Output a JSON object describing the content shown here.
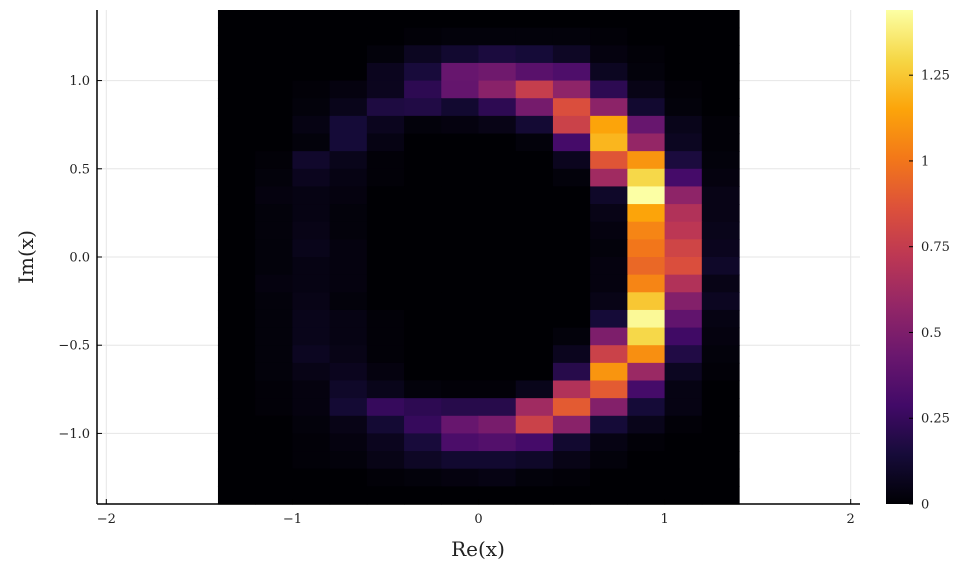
{
  "chart_data": {
    "type": "heatmap",
    "title": "",
    "xlabel": "Re(x)",
    "ylabel": "Im(x)",
    "xlim": [
      -2.05,
      2.05
    ],
    "ylim": [
      -1.4,
      1.4
    ],
    "grid": true,
    "legend": "none",
    "x_ticks": [
      -2,
      -1,
      0,
      1,
      2
    ],
    "x_tick_labels": [
      "−2",
      "−1",
      "0",
      "1",
      "2"
    ],
    "y_ticks": [
      -1,
      -0.5,
      0,
      0.5,
      1
    ],
    "y_tick_labels": [
      "−1.0",
      "−0.5",
      "0.0",
      "0.5",
      "1.0"
    ],
    "x_edges": [
      -1.4,
      -1.2,
      -1.0,
      -0.8,
      -0.6,
      -0.4,
      -0.2,
      0.0,
      0.2,
      0.4,
      0.6,
      0.8,
      1.0,
      1.2,
      1.4
    ],
    "y_edges": [
      1.4,
      1.3,
      1.2,
      1.1,
      1.0,
      0.9,
      0.8,
      0.7,
      0.6,
      0.5,
      0.4,
      0.3,
      0.2,
      0.1,
      0.0,
      -0.1,
      -0.2,
      -0.3,
      -0.4,
      -0.5,
      -0.6,
      -0.7,
      -0.8,
      -0.9,
      -1.0,
      -1.1,
      -1.2,
      -1.3,
      -1.4
    ],
    "values": [
      [
        0,
        0,
        0,
        0,
        0,
        0,
        0,
        0,
        0,
        0,
        0,
        0,
        0,
        0
      ],
      [
        0,
        0,
        0,
        0,
        0,
        0.01,
        0.02,
        0.02,
        0.02,
        0.02,
        0.01,
        0,
        0,
        0
      ],
      [
        0,
        0,
        0,
        0,
        0.02,
        0.08,
        0.12,
        0.16,
        0.14,
        0.09,
        0.03,
        0.01,
        0,
        0
      ],
      [
        0,
        0,
        0,
        0,
        0.07,
        0.15,
        0.42,
        0.45,
        0.37,
        0.33,
        0.08,
        0.02,
        0,
        0
      ],
      [
        0,
        0,
        0.01,
        0.03,
        0.07,
        0.22,
        0.41,
        0.54,
        0.76,
        0.56,
        0.22,
        0.05,
        0.01,
        0
      ],
      [
        0,
        0,
        0.02,
        0.06,
        0.17,
        0.18,
        0.12,
        0.22,
        0.47,
        0.85,
        0.55,
        0.12,
        0.02,
        0
      ],
      [
        0,
        0,
        0.04,
        0.14,
        0.07,
        0.02,
        0.03,
        0.05,
        0.13,
        0.78,
        1.15,
        0.42,
        0.06,
        0.01
      ],
      [
        0,
        0,
        0.02,
        0.14,
        0.04,
        0,
        0,
        0,
        0.02,
        0.3,
        1.2,
        0.58,
        0.08,
        0.01
      ],
      [
        0,
        0.01,
        0.11,
        0.06,
        0.01,
        0,
        0,
        0,
        0,
        0.07,
        0.88,
        1.1,
        0.16,
        0.02
      ],
      [
        0,
        0.02,
        0.07,
        0.04,
        0.01,
        0,
        0,
        0,
        0,
        0.02,
        0.62,
        1.3,
        0.3,
        0.03
      ],
      [
        0,
        0.03,
        0.04,
        0.03,
        0,
        0,
        0,
        0,
        0,
        0,
        0.1,
        1.44,
        0.56,
        0.05
      ],
      [
        0,
        0.02,
        0.04,
        0.02,
        0,
        0,
        0,
        0,
        0,
        0,
        0.05,
        1.15,
        0.68,
        0.05
      ],
      [
        0,
        0.02,
        0.05,
        0.02,
        0,
        0,
        0,
        0,
        0,
        0,
        0.03,
        1.05,
        0.72,
        0.06
      ],
      [
        0,
        0.02,
        0.06,
        0.03,
        0,
        0,
        0,
        0,
        0,
        0,
        0.02,
        1.0,
        0.8,
        0.07
      ],
      [
        0,
        0.02,
        0.04,
        0.03,
        0,
        0,
        0,
        0,
        0,
        0,
        0.03,
        0.95,
        0.85,
        0.1
      ],
      [
        0,
        0.03,
        0.04,
        0.03,
        0,
        0,
        0,
        0,
        0,
        0,
        0.03,
        1.05,
        0.68,
        0.05
      ],
      [
        0,
        0.02,
        0.05,
        0.02,
        0,
        0,
        0,
        0,
        0,
        0,
        0.05,
        1.25,
        0.52,
        0.08
      ],
      [
        0,
        0.02,
        0.06,
        0.04,
        0.01,
        0,
        0,
        0,
        0,
        0,
        0.14,
        1.42,
        0.4,
        0.04
      ],
      [
        0,
        0.02,
        0.06,
        0.04,
        0.01,
        0,
        0,
        0,
        0,
        0.02,
        0.5,
        1.3,
        0.28,
        0.03
      ],
      [
        0,
        0.02,
        0.08,
        0.05,
        0.01,
        0,
        0,
        0,
        0,
        0.07,
        0.78,
        1.08,
        0.18,
        0.02
      ],
      [
        0,
        0.02,
        0.05,
        0.07,
        0.03,
        0,
        0,
        0,
        0,
        0.2,
        1.1,
        0.6,
        0.08,
        0.01
      ],
      [
        0,
        0.01,
        0.03,
        0.1,
        0.06,
        0.02,
        0.01,
        0.01,
        0.06,
        0.68,
        0.9,
        0.3,
        0.04,
        0
      ],
      [
        0,
        0.01,
        0.03,
        0.13,
        0.25,
        0.22,
        0.2,
        0.2,
        0.62,
        0.9,
        0.52,
        0.14,
        0.04,
        0
      ],
      [
        0,
        0,
        0.02,
        0.05,
        0.13,
        0.25,
        0.42,
        0.48,
        0.78,
        0.54,
        0.14,
        0.06,
        0.01,
        0
      ],
      [
        0,
        0,
        0.01,
        0.03,
        0.07,
        0.15,
        0.32,
        0.35,
        0.3,
        0.12,
        0.04,
        0.01,
        0,
        0
      ],
      [
        0,
        0,
        0.01,
        0.02,
        0.05,
        0.09,
        0.12,
        0.12,
        0.1,
        0.05,
        0.02,
        0,
        0,
        0
      ],
      [
        0,
        0,
        0,
        0,
        0.01,
        0.02,
        0.03,
        0.04,
        0.02,
        0.01,
        0,
        0,
        0,
        0
      ],
      [
        0,
        0,
        0,
        0,
        0,
        0,
        0,
        0,
        0,
        0,
        0,
        0,
        0,
        0
      ]
    ],
    "colorscale": "inferno",
    "colorbar_range": [
      0,
      1.44
    ],
    "colorbar_ticks": [
      0,
      0.25,
      0.5,
      0.75,
      1.0,
      1.25
    ],
    "colorbar_tick_labels": [
      "0",
      "0.25",
      "0.5",
      "0.75",
      "1",
      "1.25"
    ]
  }
}
